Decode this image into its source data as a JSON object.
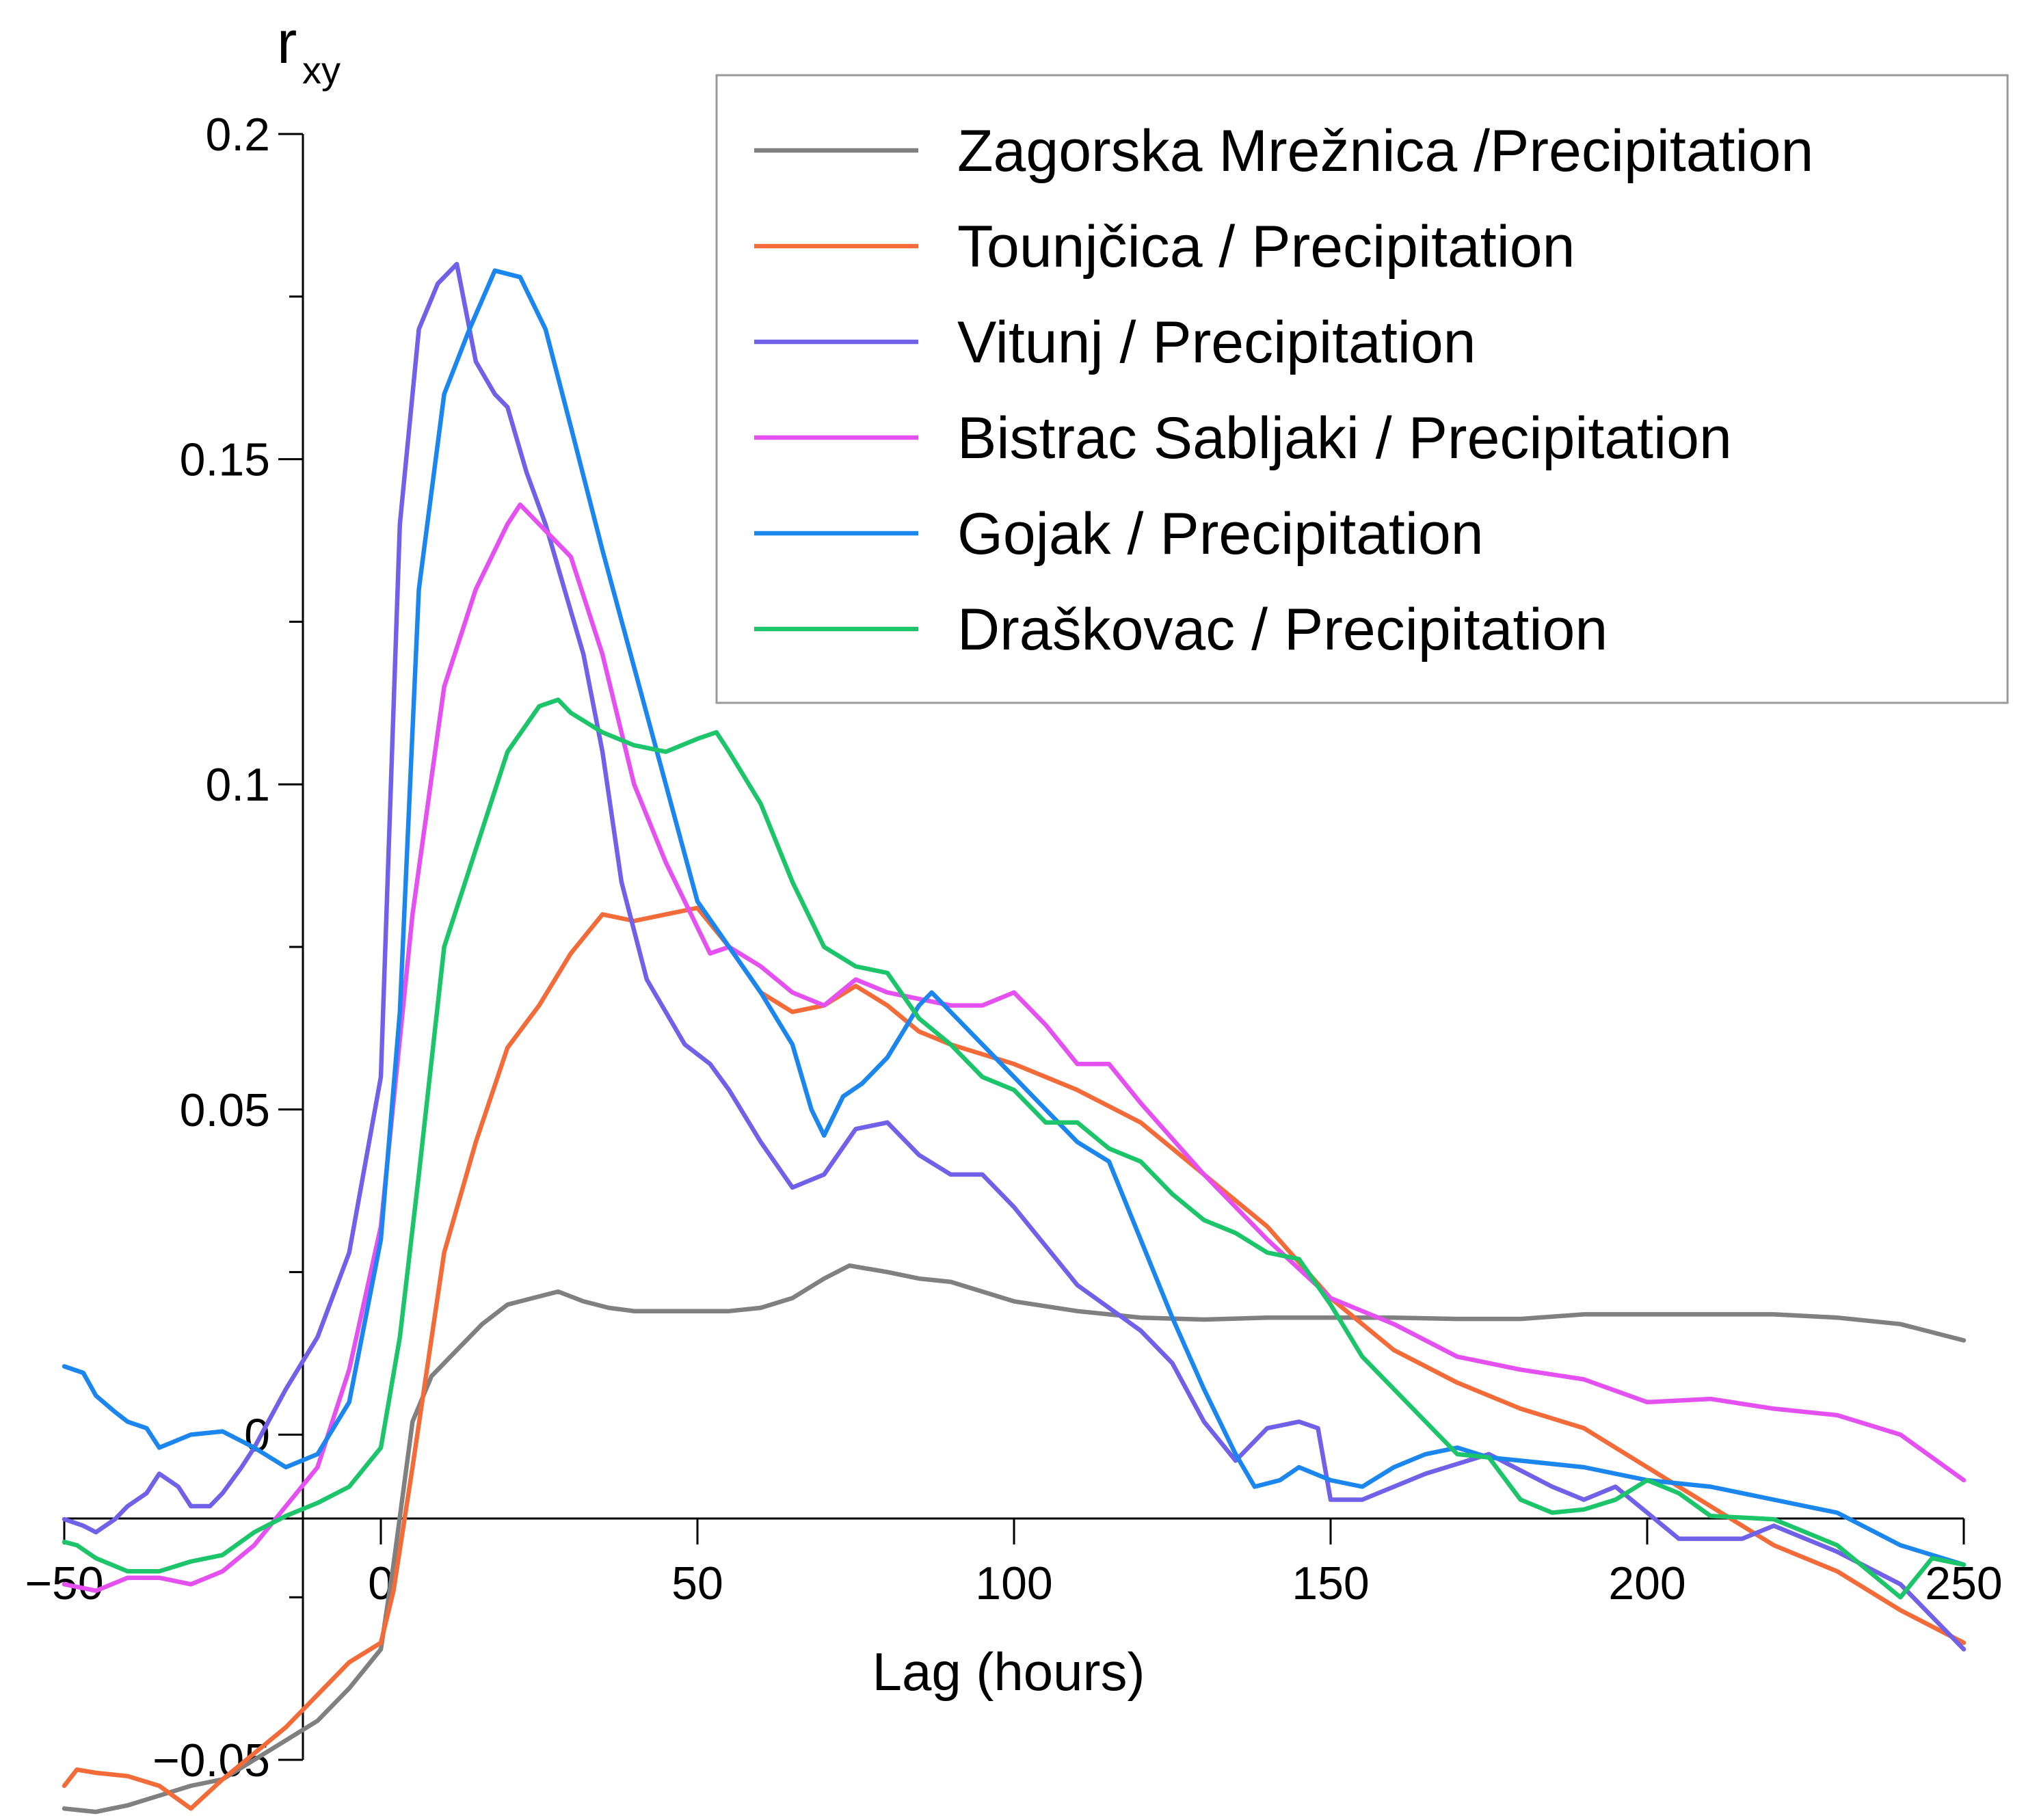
{
  "chart_data": {
    "type": "line",
    "title": "",
    "xlabel": "Lag (hours)",
    "ylabel": "r",
    "ylabel_subscript": "xy",
    "xlim": [
      -50,
      250
    ],
    "ylim": [
      -0.05,
      0.2
    ],
    "xticks": [
      -50,
      0,
      50,
      100,
      150,
      200,
      250
    ],
    "xtick_labels": [
      "−50",
      "0",
      "50",
      "100",
      "150",
      "200",
      "250"
    ],
    "yticks": [
      -0.05,
      0,
      0.05,
      0.1,
      0.15,
      0.2
    ],
    "ytick_labels": [
      "−0.05",
      "0",
      "0.05",
      "0.1",
      "0.15",
      "0.2"
    ],
    "y_minor_ticks": [
      -0.025,
      0.025,
      0.075,
      0.125,
      0.175
    ],
    "legend_position": "top-right",
    "grid": false,
    "series": [
      {
        "name": "Zagorska Mrežnica /Precipitation",
        "color": "#808080",
        "x": [
          -50,
          -45,
          -40,
          -35,
          -30,
          -25,
          -20,
          -15,
          -10,
          -5,
          0,
          2,
          5,
          8,
          12,
          16,
          20,
          24,
          28,
          32,
          36,
          40,
          45,
          50,
          55,
          60,
          65,
          70,
          74,
          80,
          85,
          90,
          95,
          100,
          110,
          120,
          130,
          140,
          150,
          160,
          170,
          180,
          190,
          200,
          210,
          220,
          230,
          240,
          250
        ],
        "y": [
          -0.0575,
          -0.058,
          -0.057,
          -0.0555,
          -0.054,
          -0.053,
          -0.05,
          -0.047,
          -0.044,
          -0.039,
          -0.033,
          -0.02,
          0.002,
          0.009,
          0.013,
          0.017,
          0.02,
          0.021,
          0.022,
          0.0205,
          0.0195,
          0.019,
          0.019,
          0.019,
          0.019,
          0.0195,
          0.021,
          0.024,
          0.026,
          0.025,
          0.024,
          0.0235,
          0.022,
          0.0205,
          0.019,
          0.018,
          0.0177,
          0.018,
          0.018,
          0.018,
          0.0178,
          0.0178,
          0.0185,
          0.0185,
          0.0185,
          0.0185,
          0.018,
          0.017,
          0.0145
        ]
      },
      {
        "name": "Tounjčica / Precipitation",
        "color": "#f26b38",
        "x": [
          -50,
          -48,
          -45,
          -40,
          -35,
          -30,
          -25,
          -20,
          -15,
          -10,
          -5,
          0,
          2,
          5,
          10,
          15,
          20,
          25,
          30,
          35,
          40,
          45,
          50,
          55,
          60,
          65,
          70,
          75,
          80,
          85,
          90,
          100,
          110,
          120,
          130,
          140,
          150,
          160,
          170,
          180,
          190,
          200,
          210,
          220,
          230,
          240,
          250
        ],
        "y": [
          -0.054,
          -0.0515,
          -0.052,
          -0.0525,
          -0.054,
          -0.0575,
          -0.053,
          -0.049,
          -0.045,
          -0.04,
          -0.035,
          -0.032,
          -0.024,
          -0.005,
          0.028,
          0.045,
          0.0595,
          0.066,
          0.074,
          0.08,
          0.079,
          0.08,
          0.081,
          0.075,
          0.068,
          0.065,
          0.066,
          0.069,
          0.066,
          0.062,
          0.06,
          0.057,
          0.053,
          0.048,
          0.04,
          0.032,
          0.021,
          0.013,
          0.008,
          0.004,
          0.001,
          -0.005,
          -0.011,
          -0.017,
          -0.021,
          -0.027,
          -0.032
        ]
      },
      {
        "name": "Vitunj / Precipitation",
        "color": "#7161e8",
        "x": [
          -50,
          -47,
          -45,
          -42,
          -40,
          -37,
          -35,
          -32,
          -30,
          -27,
          -25,
          -22,
          -20,
          -15,
          -10,
          -5,
          0,
          3,
          6,
          9,
          12,
          15,
          18,
          20,
          23,
          26,
          29,
          32,
          35,
          38,
          42,
          45,
          48,
          52,
          55,
          60,
          65,
          70,
          75,
          80,
          85,
          90,
          95,
          100,
          110,
          120,
          125,
          130,
          135,
          140,
          145,
          148,
          150,
          155,
          160,
          165,
          170,
          175,
          180,
          185,
          190,
          195,
          200,
          205,
          210,
          215,
          220,
          225,
          230,
          240,
          250
        ],
        "y": [
          -0.013,
          -0.014,
          -0.015,
          -0.013,
          -0.011,
          -0.009,
          -0.006,
          -0.008,
          -0.011,
          -0.011,
          -0.009,
          -0.005,
          -0.002,
          0.007,
          0.015,
          0.028,
          0.055,
          0.14,
          0.17,
          0.177,
          0.18,
          0.165,
          0.16,
          0.158,
          0.148,
          0.14,
          0.13,
          0.12,
          0.105,
          0.085,
          0.07,
          0.065,
          0.06,
          0.057,
          0.053,
          0.045,
          0.038,
          0.04,
          0.047,
          0.048,
          0.043,
          0.04,
          0.04,
          0.035,
          0.023,
          0.016,
          0.011,
          0.002,
          -0.004,
          0.001,
          0.002,
          0.001,
          -0.01,
          -0.01,
          -0.008,
          -0.006,
          -0.0045,
          -0.003,
          -0.0055,
          -0.008,
          -0.01,
          -0.008,
          -0.012,
          -0.016,
          -0.016,
          -0.016,
          -0.014,
          -0.016,
          -0.018,
          -0.023,
          -0.033
        ]
      },
      {
        "name": "Bistrac Sabljaki  / Precipitation",
        "color": "#e550f0",
        "x": [
          -50,
          -45,
          -40,
          -35,
          -30,
          -25,
          -20,
          -15,
          -10,
          -5,
          0,
          5,
          10,
          15,
          20,
          22,
          25,
          30,
          35,
          40,
          45,
          50,
          52,
          55,
          60,
          65,
          70,
          75,
          80,
          85,
          90,
          95,
          100,
          105,
          110,
          115,
          120,
          130,
          140,
          150,
          160,
          170,
          180,
          190,
          200,
          210,
          220,
          230,
          240,
          250
        ],
        "y": [
          -0.023,
          -0.024,
          -0.022,
          -0.022,
          -0.023,
          -0.021,
          -0.017,
          -0.011,
          -0.005,
          0.01,
          0.032,
          0.08,
          0.115,
          0.13,
          0.14,
          0.143,
          0.14,
          0.135,
          0.12,
          0.1,
          0.088,
          0.078,
          0.074,
          0.075,
          0.072,
          0.068,
          0.066,
          0.07,
          0.068,
          0.067,
          0.066,
          0.066,
          0.068,
          0.063,
          0.057,
          0.057,
          0.051,
          0.04,
          0.03,
          0.021,
          0.017,
          0.012,
          0.01,
          0.0085,
          0.005,
          0.0055,
          0.004,
          0.003,
          0.0,
          -0.007
        ]
      },
      {
        "name": "Gojak / Precipitation",
        "color": "#1a86ee",
        "x": [
          -50,
          -47,
          -45,
          -42,
          -40,
          -37,
          -35,
          -30,
          -25,
          -20,
          -15,
          -10,
          -5,
          0,
          3,
          6,
          10,
          14,
          18,
          22,
          26,
          30,
          35,
          40,
          45,
          50,
          55,
          60,
          65,
          68,
          70,
          73,
          76,
          80,
          85,
          87,
          90,
          95,
          100,
          105,
          110,
          115,
          120,
          125,
          130,
          135,
          138,
          142,
          145,
          150,
          155,
          160,
          165,
          170,
          175,
          180,
          190,
          200,
          210,
          220,
          230,
          240,
          250
        ],
        "y": [
          0.0105,
          0.0095,
          0.006,
          0.0035,
          0.002,
          0.001,
          -0.002,
          0.0,
          0.0005,
          -0.002,
          -0.005,
          -0.003,
          0.005,
          0.03,
          0.065,
          0.13,
          0.16,
          0.17,
          0.179,
          0.178,
          0.17,
          0.155,
          0.136,
          0.118,
          0.1,
          0.082,
          0.075,
          0.068,
          0.06,
          0.05,
          0.046,
          0.052,
          0.054,
          0.058,
          0.066,
          0.068,
          0.065,
          0.06,
          0.055,
          0.05,
          0.045,
          0.042,
          0.03,
          0.018,
          0.007,
          -0.003,
          -0.008,
          -0.007,
          -0.005,
          -0.007,
          -0.008,
          -0.005,
          -0.003,
          -0.002,
          -0.0035,
          -0.004,
          -0.005,
          -0.007,
          -0.008,
          -0.01,
          -0.012,
          -0.017,
          -0.02
        ]
      },
      {
        "name": "Draškovac / Precipitation",
        "color": "#1cc46a",
        "x": [
          -50,
          -48,
          -45,
          -40,
          -35,
          -30,
          -25,
          -20,
          -15,
          -10,
          -5,
          0,
          3,
          6,
          10,
          15,
          20,
          25,
          28,
          30,
          35,
          40,
          45,
          50,
          53,
          55,
          60,
          65,
          70,
          75,
          80,
          85,
          90,
          95,
          100,
          105,
          110,
          115,
          120,
          125,
          130,
          135,
          140,
          145,
          150,
          155,
          160,
          165,
          170,
          175,
          180,
          185,
          190,
          195,
          200,
          205,
          210,
          220,
          230,
          240,
          245,
          250
        ],
        "y": [
          -0.0165,
          -0.017,
          -0.019,
          -0.021,
          -0.021,
          -0.0195,
          -0.0185,
          -0.015,
          -0.0125,
          -0.0105,
          -0.008,
          -0.002,
          0.015,
          0.04,
          0.075,
          0.09,
          0.105,
          0.112,
          0.113,
          0.111,
          0.108,
          0.106,
          0.105,
          0.107,
          0.108,
          0.105,
          0.097,
          0.085,
          0.075,
          0.072,
          0.071,
          0.064,
          0.06,
          0.055,
          0.053,
          0.048,
          0.048,
          0.044,
          0.042,
          0.037,
          0.033,
          0.031,
          0.028,
          0.027,
          0.02,
          0.012,
          0.007,
          0.002,
          -0.003,
          -0.0035,
          -0.01,
          -0.012,
          -0.0115,
          -0.01,
          -0.007,
          -0.009,
          -0.0125,
          -0.013,
          -0.017,
          -0.025,
          -0.019,
          -0.02
        ]
      }
    ]
  }
}
